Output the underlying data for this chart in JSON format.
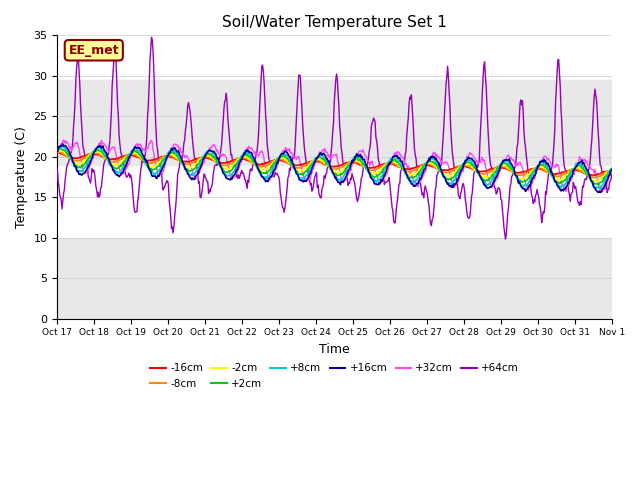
{
  "title": "Soil/Water Temperature Set 1",
  "xlabel": "Time",
  "ylabel": "Temperature (C)",
  "ylim": [
    0,
    35
  ],
  "xlim": [
    0,
    15
  ],
  "annotation_text": "EE_met",
  "annotation_color": "#8B0000",
  "annotation_bg": "#FFFF99",
  "background_color": "#ffffff",
  "shading_bands": [
    {
      "ymin": 19.0,
      "ymax": 29.5,
      "color": "#e8e8e8"
    },
    {
      "ymin": 0,
      "ymax": 10.0,
      "color": "#e8e8e8"
    }
  ],
  "x_tick_labels": [
    "Oct 17",
    "Oct 18",
    "Oct 19",
    "Oct 20",
    "Oct 21",
    "Oct 22",
    "Oct 23",
    "Oct 24",
    "Oct 25",
    "Oct 26",
    "Oct 27",
    "Oct 28",
    "Oct 29",
    "Oct 30",
    "Oct 31",
    "Nov 1"
  ],
  "series": [
    {
      "label": "-16cm",
      "color": "#FF0000",
      "linewidth": 1.2,
      "zorder": 5
    },
    {
      "label": "-8cm",
      "color": "#FF8800",
      "linewidth": 1.2,
      "zorder": 5
    },
    {
      "label": "-2cm",
      "color": "#FFFF00",
      "linewidth": 1.2,
      "zorder": 5
    },
    {
      "label": "+2cm",
      "color": "#00CC00",
      "linewidth": 1.2,
      "zorder": 5
    },
    {
      "label": "+8cm",
      "color": "#00CCCC",
      "linewidth": 1.2,
      "zorder": 5
    },
    {
      "label": "+16cm",
      "color": "#000099",
      "linewidth": 1.2,
      "zorder": 5
    },
    {
      "label": "+32cm",
      "color": "#FF44FF",
      "linewidth": 1.0,
      "zorder": 4
    },
    {
      "label": "+64cm",
      "color": "#9900BB",
      "linewidth": 1.0,
      "zorder": 3
    }
  ]
}
